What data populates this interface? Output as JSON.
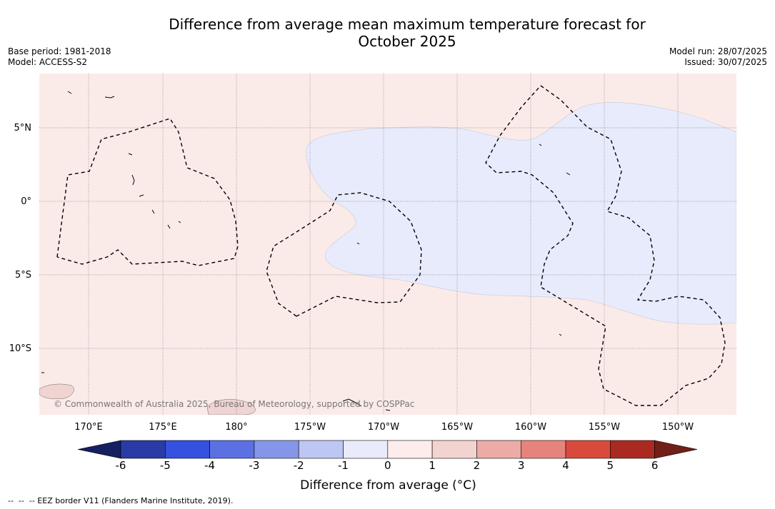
{
  "header": {
    "title_line1": "Difference from average mean maximum temperature forecast for",
    "title_line2": "October 2025",
    "base_period": "Base period: 1981-2018",
    "model": "Model: ACCESS-S2",
    "model_run": "Model run: 28/07/2025",
    "issued": "Issued: 30/07/2025"
  },
  "map": {
    "copyright": "© Commonwealth of Australia 2025, Bureau of Meteorology, supported by COSPPac",
    "lon_labels": [
      "170°E",
      "175°E",
      "180°",
      "175°W",
      "170°W",
      "165°W",
      "160°W",
      "155°W",
      "150°W"
    ],
    "lat_labels": [
      "5°N",
      "0°",
      "5°S",
      "10°S"
    ],
    "colors": {
      "ocean_warm": "#fbebe8",
      "ocean_cool": "#e8ebfb",
      "land": "#f0d4d1"
    }
  },
  "colorbar": {
    "title": "Difference from average (°C)",
    "ticks": [
      "-6",
      "-5",
      "-4",
      "-3",
      "-2",
      "-1",
      "0",
      "1",
      "2",
      "3",
      "4",
      "5",
      "6"
    ],
    "colors": [
      "#142060",
      "#2a3aa6",
      "#3451e0",
      "#5b70e3",
      "#8596e9",
      "#bec6f3",
      "#e9ebfb",
      "#fdecec",
      "#f3d3d0",
      "#ecaca5",
      "#e6847c",
      "#da4a3c",
      "#aa2a22",
      "#711f18"
    ]
  },
  "legend": {
    "eez": "EEZ border V11 (Flanders Marine Institute, 2019)."
  }
}
